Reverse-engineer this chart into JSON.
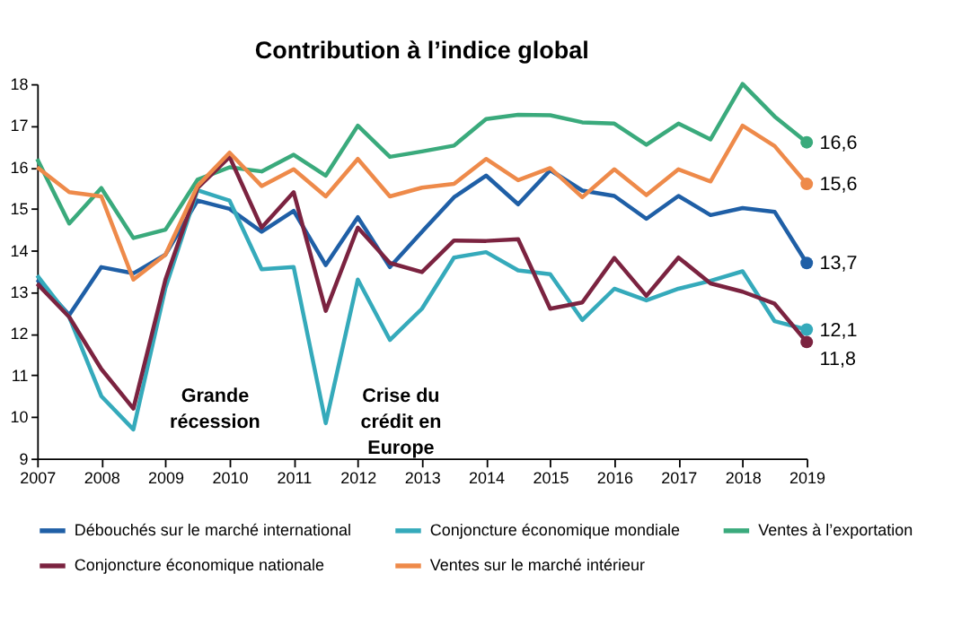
{
  "chart_data": {
    "type": "line",
    "title": "Contribution à l’indice global",
    "x": [
      2007,
      2007.5,
      2008,
      2008.5,
      2009,
      2009.5,
      2010,
      2010.5,
      2011,
      2011.5,
      2012,
      2012.5,
      2013,
      2013.5,
      2014,
      2014.5,
      2015,
      2015.5,
      2016,
      2016.5,
      2017,
      2017.5,
      2018,
      2018.5,
      2019
    ],
    "xlim": [
      2007,
      2019
    ],
    "xticks": [
      2007,
      2008,
      2009,
      2010,
      2011,
      2012,
      2013,
      2014,
      2015,
      2016,
      2017,
      2018,
      2019
    ],
    "ylim": [
      9,
      18
    ],
    "yticks": [
      9,
      10,
      11,
      12,
      13,
      14,
      15,
      16,
      17,
      18
    ],
    "grid": false,
    "legend": "bottom",
    "series": [
      {
        "name": "Débouchés sur le marché international",
        "color": "#1f5fa6",
        "values": [
          13.3,
          12.45,
          13.6,
          13.45,
          13.9,
          15.2,
          15.0,
          14.45,
          14.95,
          13.65,
          14.8,
          13.6,
          14.45,
          15.28,
          15.8,
          15.11,
          15.93,
          15.44,
          15.31,
          14.76,
          15.31,
          14.85,
          15.02,
          14.93,
          13.7
        ],
        "value_labels": [
          null,
          null,
          null,
          null,
          null,
          null,
          null,
          null,
          null,
          null,
          null,
          null,
          null,
          null,
          null,
          null,
          null,
          null,
          null,
          null,
          null,
          null,
          null,
          null,
          "13,7"
        ]
      },
      {
        "name": "Conjoncture économique mondiale",
        "color": "#35aabb",
        "values": [
          13.4,
          12.4,
          10.5,
          9.7,
          13.1,
          15.45,
          15.2,
          13.55,
          13.6,
          9.85,
          13.3,
          11.85,
          12.6,
          13.83,
          13.96,
          13.52,
          13.43,
          12.33,
          13.08,
          12.8,
          13.08,
          13.27,
          13.5,
          12.3,
          12.1
        ],
        "value_labels": [
          null,
          null,
          null,
          null,
          null,
          null,
          null,
          null,
          null,
          null,
          null,
          null,
          null,
          null,
          null,
          null,
          null,
          null,
          null,
          null,
          null,
          null,
          null,
          null,
          "12,1"
        ]
      },
      {
        "name": "Ventes à l’exportation",
        "color": "#3aaa7c",
        "values": [
          16.2,
          14.65,
          15.5,
          14.3,
          14.5,
          15.7,
          16.0,
          15.9,
          16.3,
          15.8,
          17.0,
          16.25,
          16.38,
          16.52,
          17.16,
          17.26,
          17.25,
          17.08,
          17.05,
          16.54,
          17.05,
          16.67,
          18.0,
          17.22,
          16.6
        ],
        "value_labels": [
          null,
          null,
          null,
          null,
          null,
          null,
          null,
          null,
          null,
          null,
          null,
          null,
          null,
          null,
          null,
          null,
          null,
          null,
          null,
          null,
          null,
          null,
          null,
          null,
          "16,6"
        ]
      },
      {
        "name": "Conjoncture économique nationale",
        "color": "#7b2340",
        "values": [
          13.2,
          12.4,
          11.15,
          10.2,
          13.3,
          15.5,
          16.25,
          14.55,
          15.4,
          12.55,
          14.55,
          13.7,
          13.48,
          14.24,
          14.23,
          14.27,
          12.6,
          12.75,
          13.82,
          12.91,
          13.83,
          13.21,
          13.01,
          12.72,
          11.8
        ],
        "value_labels": [
          null,
          null,
          null,
          null,
          null,
          null,
          null,
          null,
          null,
          null,
          null,
          null,
          null,
          null,
          null,
          null,
          null,
          null,
          null,
          null,
          null,
          null,
          null,
          null,
          "11,8"
        ]
      },
      {
        "name": "Ventes sur le marché intérieur",
        "color": "#ee8a4a",
        "values": [
          16.0,
          15.4,
          15.3,
          13.3,
          13.9,
          15.55,
          16.35,
          15.55,
          15.95,
          15.3,
          16.2,
          15.3,
          15.51,
          15.6,
          16.2,
          15.69,
          15.98,
          15.28,
          15.95,
          15.33,
          15.95,
          15.66,
          17.0,
          16.51,
          15.6
        ],
        "value_labels": [
          null,
          null,
          null,
          null,
          null,
          null,
          null,
          null,
          null,
          null,
          null,
          null,
          null,
          null,
          null,
          null,
          null,
          null,
          null,
          null,
          null,
          null,
          null,
          null,
          "15,6"
        ]
      }
    ],
    "annotations": [
      "Grande\nrécession",
      "Crise du\ncrédit en\nEurope"
    ]
  }
}
